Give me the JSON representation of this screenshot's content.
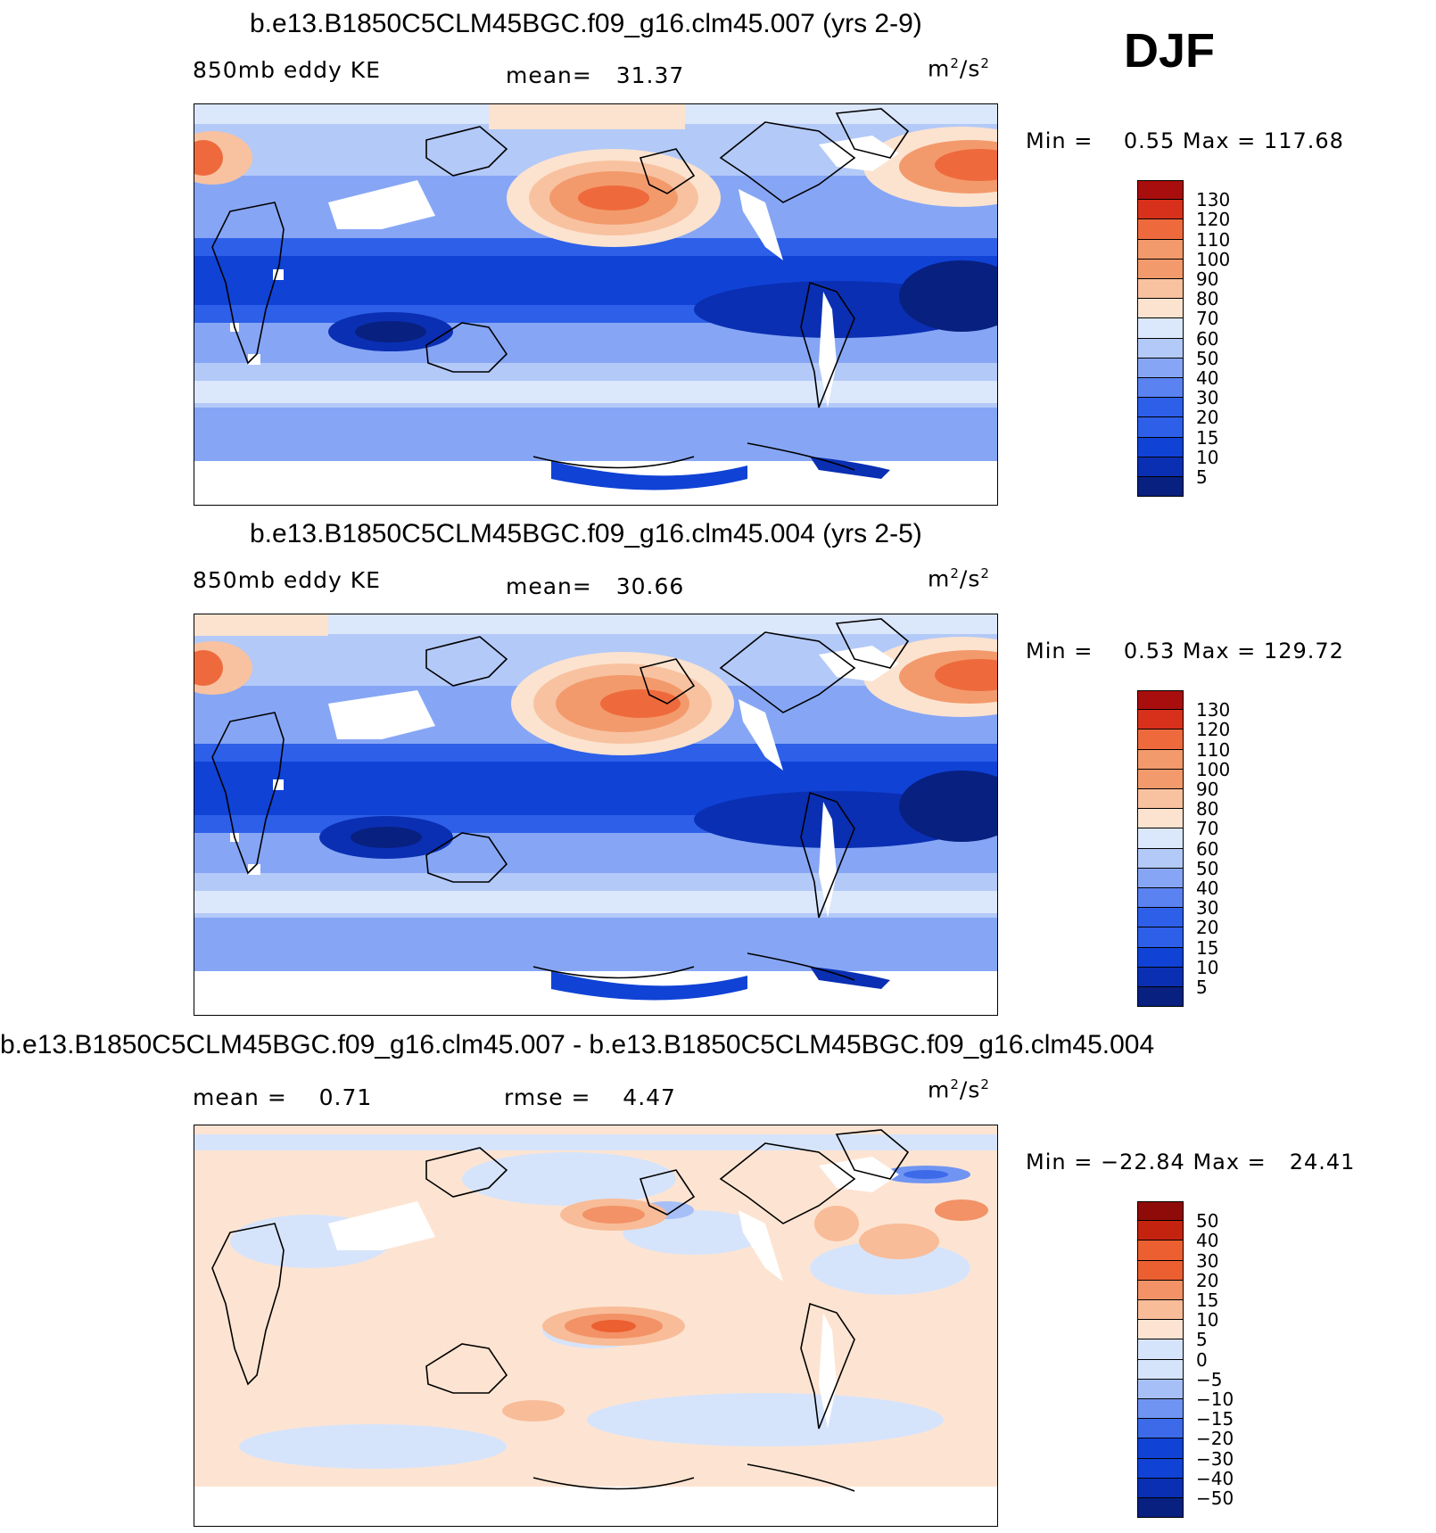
{
  "season": "DJF",
  "colors": {
    "seq13": [
      "#08207f",
      "#0a2fb3",
      "#1042d6",
      "#2d5fe8",
      "#5a82f0",
      "#86a6f5",
      "#b3c9f8",
      "#dbe7fb",
      "#fbe3cf",
      "#f8c2a0",
      "#f39a6c",
      "#ee6a3d",
      "#d8311b",
      "#a80e0d"
    ],
    "div12": [
      "#08207f",
      "#0a2fb3",
      "#1042d6",
      "#3c6ae9",
      "#6f94f2",
      "#a6bff7",
      "#d6e4fb",
      "#fde4d2",
      "#f8bc98",
      "#f29266",
      "#ec5f30",
      "#c4230f",
      "#8f0b0a"
    ],
    "land_blank": "#ffffff"
  },
  "panels": [
    {
      "title": "b.e13.B1850C5CLM45BGC.f09_g16.clm45.007 (yrs 2-9)",
      "left_label": "850mb eddy KE",
      "mean_label": "mean=",
      "mean_value": "31.37",
      "units_base": "m",
      "units_exp1": "2",
      "units_mid": "/s",
      "units_exp2": "2",
      "min_label": "Min =",
      "min_value": "0.55",
      "max_label": "Max =",
      "max_value": "117.68",
      "colorbar_labels": [
        "130",
        "120",
        "110",
        "100",
        "90",
        "80",
        "70",
        "60",
        "50",
        "40",
        "30",
        "20",
        "15",
        "10",
        "5"
      ]
    },
    {
      "title": "b.e13.B1850C5CLM45BGC.f09_g16.clm45.004 (yrs 2-5)",
      "left_label": "850mb eddy KE",
      "mean_label": "mean=",
      "mean_value": "30.66",
      "units_base": "m",
      "units_exp1": "2",
      "units_mid": "/s",
      "units_exp2": "2",
      "min_label": "Min =",
      "min_value": "0.53",
      "max_label": "Max =",
      "max_value": "129.72",
      "colorbar_labels": [
        "130",
        "120",
        "110",
        "100",
        "90",
        "80",
        "70",
        "60",
        "50",
        "40",
        "30",
        "20",
        "15",
        "10",
        "5"
      ]
    },
    {
      "title": "b.e13.B1850C5CLM45BGC.f09_g16.clm45.007 - b.e13.B1850C5CLM45BGC.f09_g16.clm45.004",
      "mean_label": "mean =",
      "mean_value": "0.71",
      "rmse_label": "rmse =",
      "rmse_value": "4.47",
      "units_base": "m",
      "units_exp1": "2",
      "units_mid": "/s",
      "units_exp2": "2",
      "min_label": "Min =",
      "min_value": "−22.84",
      "max_label": "Max =",
      "max_value": "24.41",
      "colorbar_labels": [
        "50",
        "40",
        "30",
        "20",
        "15",
        "10",
        "5",
        "0",
        "−5",
        "−10",
        "−15",
        "−20",
        "−30",
        "−40",
        "−50"
      ]
    }
  ]
}
